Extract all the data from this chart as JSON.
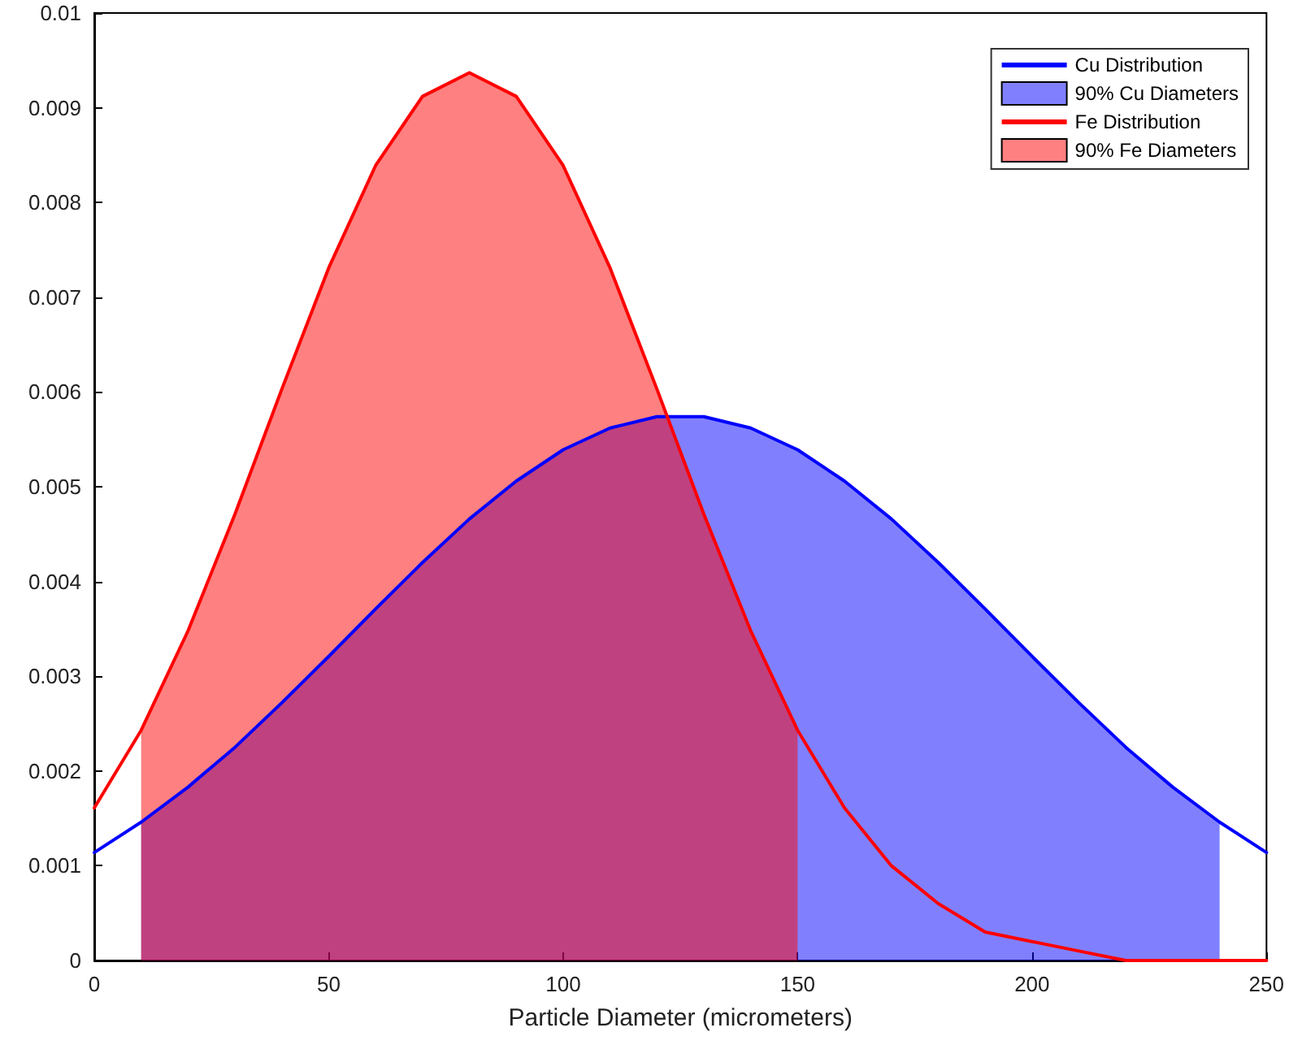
{
  "chart_data": {
    "type": "line",
    "xlabel": "Particle Diameter (micrometers)",
    "xlim": [
      0,
      250
    ],
    "xticks": [
      0,
      50,
      100,
      150,
      200,
      250
    ],
    "ylim": [
      0,
      0.01
    ],
    "yticks": [
      0,
      0.001,
      0.002,
      0.003,
      0.004,
      0.005,
      0.006,
      0.007,
      0.008,
      0.009,
      0.01
    ],
    "grid": false,
    "legend": "top right",
    "marker": "none",
    "line_style": "solid",
    "series": [
      {
        "name": "Cu Distribution",
        "color": "#0000ff",
        "x": [
          0,
          10,
          20,
          30,
          40,
          50,
          60,
          70,
          80,
          90,
          100,
          110,
          120,
          130,
          140,
          150,
          160,
          170,
          180,
          190,
          200,
          210,
          220,
          230,
          240,
          250
        ],
        "values": [
          0.00114,
          0.00146,
          0.00183,
          0.00225,
          0.00272,
          0.00321,
          0.00371,
          0.0042,
          0.00466,
          0.00506,
          0.00539,
          0.00562,
          0.00574,
          0.00574,
          0.00562,
          0.00539,
          0.00506,
          0.00466,
          0.0042,
          0.00371,
          0.00321,
          0.00272,
          0.00225,
          0.00183,
          0.00146,
          0.00114
        ]
      },
      {
        "name": "90% Cu Diameters",
        "type": "area",
        "color": "#8080ff",
        "x": [
          10,
          20,
          30,
          40,
          50,
          60,
          70,
          80,
          90,
          100,
          110,
          120,
          130,
          140,
          150,
          160,
          170,
          180,
          190,
          200,
          210,
          220,
          230,
          240
        ],
        "values": [
          0.00146,
          0.00183,
          0.00225,
          0.00272,
          0.00321,
          0.00371,
          0.0042,
          0.00466,
          0.00506,
          0.00539,
          0.00562,
          0.00574,
          0.00574,
          0.00562,
          0.00539,
          0.00506,
          0.00466,
          0.0042,
          0.00371,
          0.00321,
          0.00272,
          0.00225,
          0.00183,
          0.00146
        ]
      },
      {
        "name": "Fe Distribution",
        "color": "#ff0000",
        "x": [
          0,
          10,
          20,
          30,
          40,
          50,
          60,
          70,
          80,
          90,
          100,
          110,
          120,
          130,
          140,
          150,
          160,
          170,
          180,
          190,
          200,
          210,
          220,
          230,
          240,
          250
        ],
        "values": [
          0.00161,
          0.00243,
          0.00348,
          0.00471,
          0.00603,
          0.00731,
          0.00839,
          0.00912,
          0.00937,
          0.00912,
          0.00839,
          0.00731,
          0.00603,
          0.00471,
          0.00348,
          0.00243,
          0.00161,
          0.001,
          0.0006,
          0.0003,
          0.0002,
          0.0001,
          0,
          0,
          0,
          0
        ]
      },
      {
        "name": "90% Fe Diameters",
        "type": "area",
        "color": "#ff8080",
        "x": [
          10,
          20,
          30,
          40,
          50,
          60,
          70,
          80,
          90,
          100,
          110,
          120,
          130,
          140,
          150
        ],
        "values": [
          0.00243,
          0.00348,
          0.00471,
          0.00603,
          0.00731,
          0.00839,
          0.00912,
          0.00937,
          0.00912,
          0.00839,
          0.00731,
          0.00603,
          0.00471,
          0.00348,
          0.00243
        ]
      }
    ]
  }
}
